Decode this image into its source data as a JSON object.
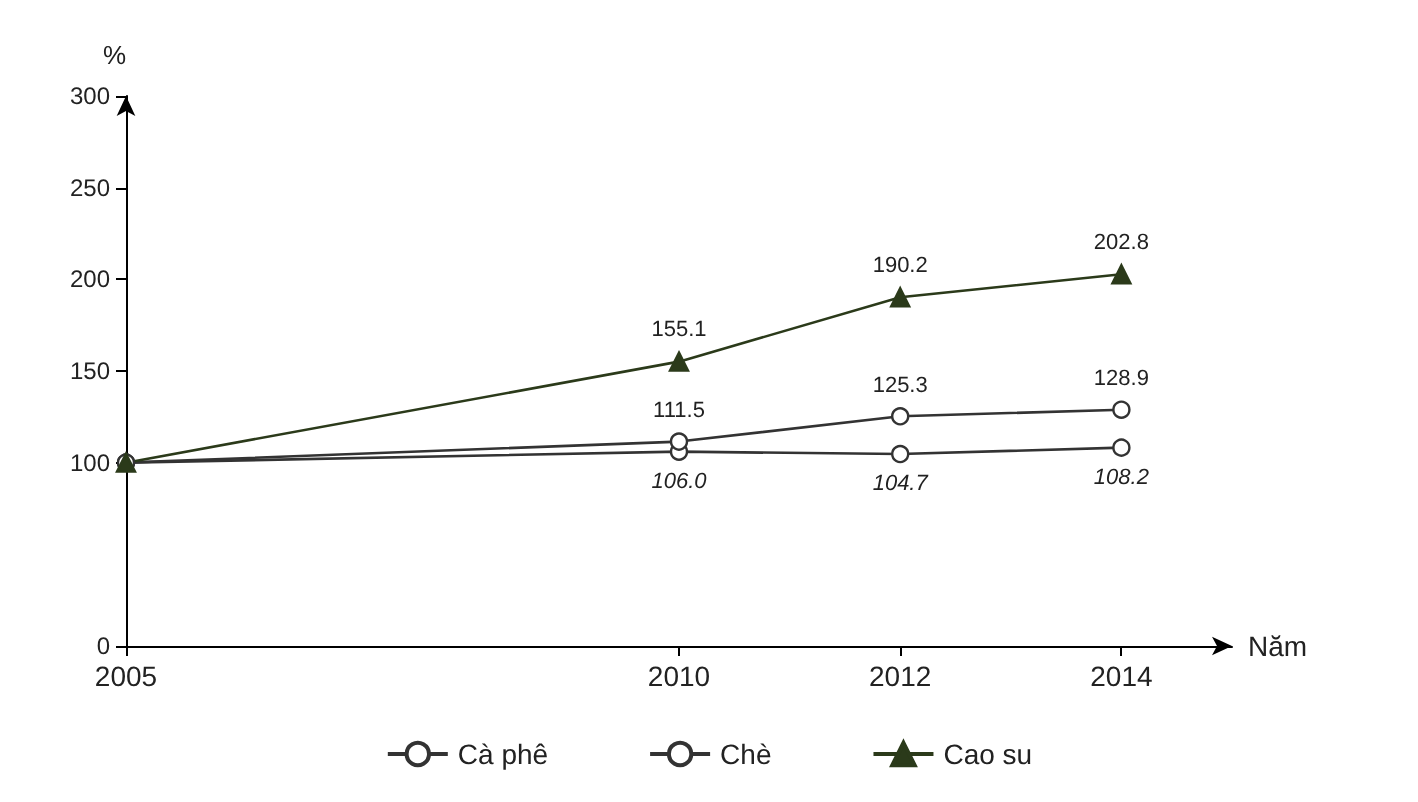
{
  "chart_data": {
    "type": "line",
    "ylabel": "%",
    "xlabel": "Năm",
    "x": [
      2005,
      2010,
      2012,
      2014
    ],
    "xlim": [
      2005,
      2015
    ],
    "xticks": [
      2005,
      2010,
      2012,
      2014
    ],
    "ylim": [
      0,
      300
    ],
    "yticks": [
      0,
      100,
      150,
      200,
      250,
      300
    ],
    "grid": false,
    "legend": "bottom",
    "line_style": "solid",
    "series": [
      {
        "name": "Cà phê",
        "color": "#333333",
        "marker": "circle",
        "values": [
          100,
          106.0,
          104.7,
          108.2
        ],
        "value_labels": [
          null,
          "106.0",
          "104.7",
          "108.2"
        ]
      },
      {
        "name": "Chè",
        "color": "#333333",
        "marker": "circle",
        "values": [
          100,
          111.5,
          125.3,
          128.9
        ],
        "value_labels": [
          null,
          "111.5",
          "125.3",
          "128.9"
        ]
      },
      {
        "name": "Cao su",
        "color": "#2b3a1a",
        "marker": "triangle",
        "values": [
          100,
          155.1,
          190.2,
          202.8
        ],
        "value_labels": [
          null,
          "155.1",
          "190.2",
          "202.8"
        ]
      }
    ]
  }
}
